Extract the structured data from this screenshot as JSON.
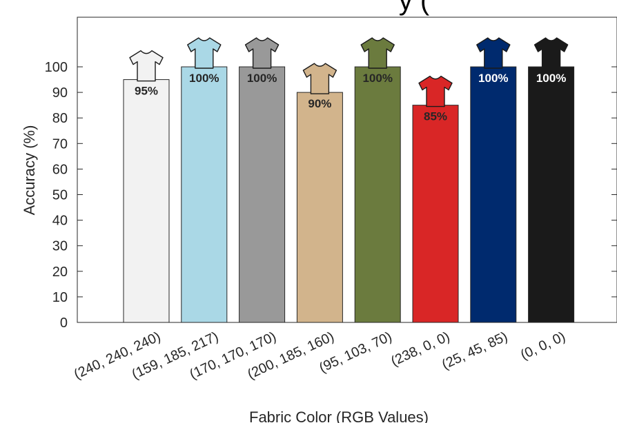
{
  "chart_data": {
    "type": "bar",
    "title": "y (",
    "xlabel": "Fabric Color (RGB Values)",
    "ylabel": "Accuracy (%)",
    "ylim": [
      0,
      100
    ],
    "yticks": [
      "0",
      "10",
      "20",
      "30",
      "40",
      "50",
      "60",
      "70",
      "80",
      "90",
      "100"
    ],
    "categories": [
      "(240, 240, 240)",
      "(159, 185, 217)",
      "(170, 170, 170)",
      "(200, 185, 160)",
      "(95, 103, 70)",
      "(238, 0, 0)",
      "(25, 45, 85)",
      "(0, 0, 0)"
    ],
    "values": [
      95,
      100,
      100,
      90,
      100,
      85,
      100,
      100
    ],
    "labels": [
      "95%",
      "100%",
      "100%",
      "90%",
      "100%",
      "85%",
      "100%",
      "100%"
    ],
    "colors": [
      "#f2f2f2",
      "#aad8e6",
      "#999999",
      "#d2b48c",
      "#6b7b3e",
      "#d92626",
      "#002a6e",
      "#1a1a1a"
    ],
    "label_colors": [
      "#262626",
      "#262626",
      "#262626",
      "#262626",
      "#262626",
      "#262626",
      "#ffffff",
      "#ffffff"
    ],
    "legend": "none",
    "grid": false,
    "icon": "t-shirt-icon"
  }
}
